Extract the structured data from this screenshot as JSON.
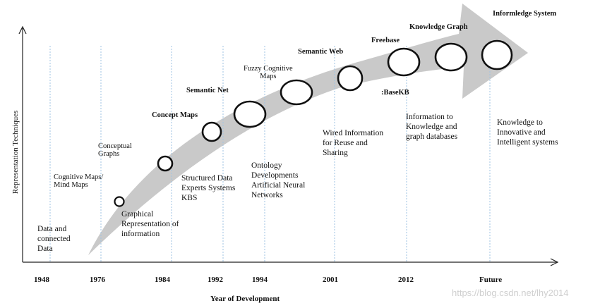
{
  "axes": {
    "x_label": "Year of Development",
    "y_label": "Representation Techniques",
    "years": [
      "1948",
      "1976",
      "1984",
      "1992",
      "1994",
      "2001",
      "2012",
      "Future"
    ]
  },
  "milestones": [
    "Cognitive Maps/\nMind Maps",
    "Conceptual\nGraphs",
    "Concept Maps",
    "Semantic Net",
    "Fuzzy Cognitive\nMaps",
    "Semantic Web",
    "Freebase",
    ":BaseKB",
    "Knowledge Graph",
    "Informledge System"
  ],
  "descriptions": [
    "Data and\nconnected\nData",
    "Graphical\nRepresentation of\ninformation",
    "Structured Data\nExperts Systems\nKBS",
    "Ontology\nDevelopments\nArtificial Neural\nNetworks",
    "Wired Information\nfor Reuse and\nSharing",
    "Information to\nKnowledge and\ngraph databases",
    "Knowledge to\nInnovative and\nIntelligent systems"
  ],
  "watermark": "https://blog.csdn.net/lhy2014"
}
